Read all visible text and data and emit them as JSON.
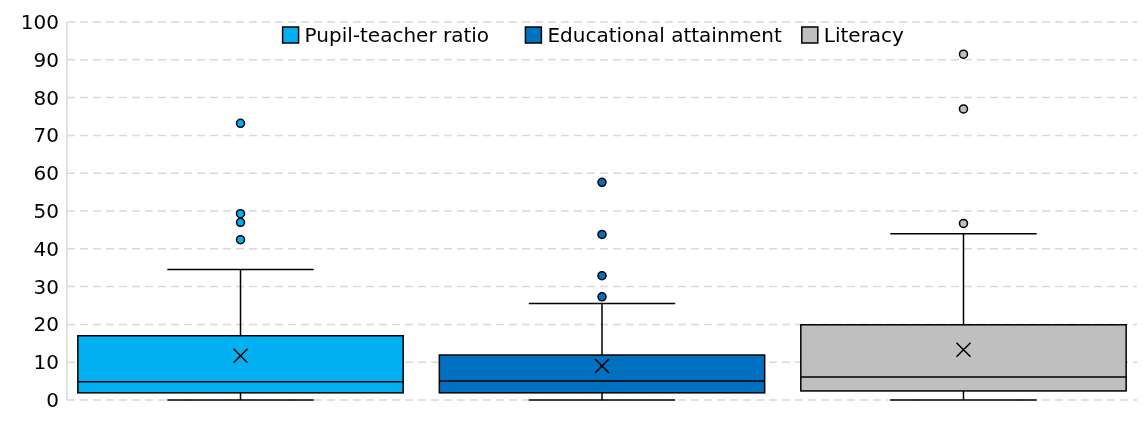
{
  "chart_data": {
    "type": "box",
    "categories": [
      null
    ],
    "ylim": [
      0,
      100
    ],
    "yticks": [
      0,
      10,
      20,
      30,
      40,
      50,
      60,
      70,
      80,
      90,
      100
    ],
    "grid": "y",
    "legend": "top",
    "series": [
      {
        "name": "Pupil-teacher ratio",
        "color": "#00b0f0",
        "boxes": [
          {
            "low": 0,
            "q1": 1.9,
            "median": 4.8,
            "q3": 17,
            "high": 34.5,
            "mean": 11.7,
            "outliers": [
              73.2,
              49.3,
              47,
              42.4
            ]
          }
        ]
      },
      {
        "name": "Educational attainment",
        "color": "#0070c0",
        "boxes": [
          {
            "low": 0,
            "q1": 1.9,
            "median": 5,
            "q3": 11.9,
            "high": 25.5,
            "mean": 9,
            "outliers": [
              57.6,
              43.8,
              32.9,
              27.3
            ]
          }
        ]
      },
      {
        "name": "Literacy",
        "color": "#bfbfbf",
        "boxes": [
          {
            "low": 0,
            "q1": 2.4,
            "median": 6.1,
            "q3": 19.9,
            "high": 44,
            "mean": 13.3,
            "outliers": [
              91.5,
              77,
              46.7
            ]
          }
        ]
      }
    ]
  }
}
